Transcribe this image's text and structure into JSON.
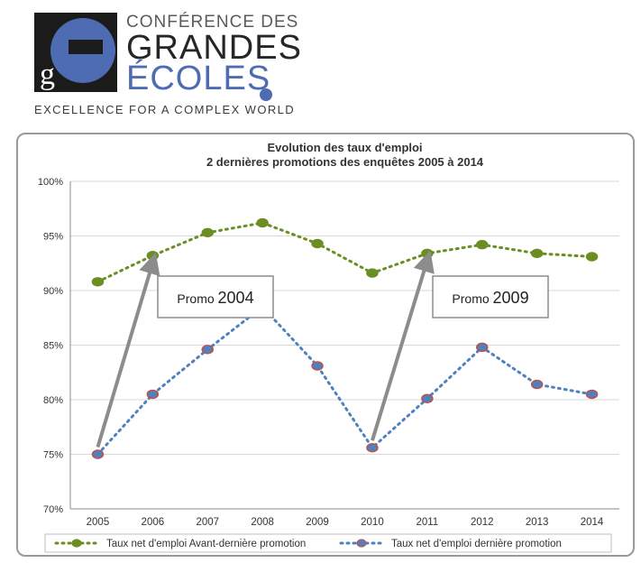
{
  "header": {
    "brand_top": "CONFÉRENCE DES",
    "brand_mid": "GRANDES",
    "brand_bot": "ÉCOLES",
    "tagline": "EXCELLENCE FOR A COMPLEX WORLD",
    "logo_letters": "ge"
  },
  "colors": {
    "brand_blue": "#4e6cb2",
    "series_green": "#6b8e23",
    "series_blue": "#4f81bd",
    "marker_red": "#c0504d",
    "arrow_gray": "#8c8c8c"
  },
  "chart_data": {
    "type": "line",
    "title": "Evolution des taux d'emploi",
    "subtitle": "2 dernières promotions des enquêtes 2005 à 2014",
    "x": [
      "2005",
      "2006",
      "2007",
      "2008",
      "2009",
      "2010",
      "2011",
      "2012",
      "2013",
      "2014"
    ],
    "ylim": [
      70,
      100
    ],
    "yticks": [
      "70%",
      "75%",
      "80%",
      "85%",
      "90%",
      "95%",
      "100%"
    ],
    "grid": true,
    "legend_position": "bottom",
    "series": [
      {
        "name": "Taux net d'emploi Avant-dernière promotion",
        "values": [
          90.8,
          93.2,
          95.3,
          96.2,
          94.3,
          91.6,
          93.4,
          94.2,
          93.4,
          93.1
        ]
      },
      {
        "name": "Taux net d'emploi dernière promotion",
        "values": [
          75.0,
          80.5,
          84.6,
          88.5,
          83.1,
          75.6,
          80.1,
          84.8,
          81.4,
          80.5
        ]
      }
    ],
    "annotations": [
      {
        "label": "Promo",
        "year": "2004",
        "from": [
          "2005",
          75.0
        ],
        "to": [
          "2006",
          93.2
        ]
      },
      {
        "label": "Promo",
        "year": "2009",
        "from": [
          "2010",
          75.6
        ],
        "to": [
          "2011",
          93.4
        ]
      }
    ]
  }
}
